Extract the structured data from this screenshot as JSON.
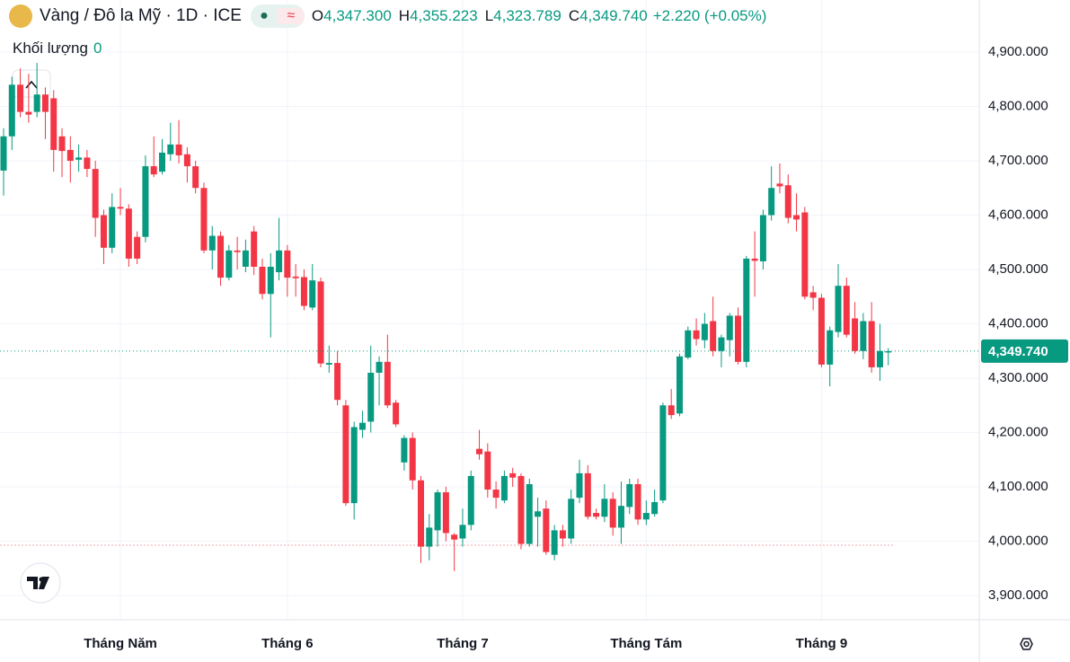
{
  "header": {
    "title": "Vàng / Đô la Mỹ · 1D · ICE",
    "ohlc": [
      {
        "key": "O",
        "value": "4,347.300"
      },
      {
        "key": "H",
        "value": "4,355.223"
      },
      {
        "key": "L",
        "value": "4,323.789"
      },
      {
        "key": "C",
        "value": "4,349.740"
      }
    ],
    "change": "+2.220 (+0.05%)",
    "volume_label": "Khối lượng",
    "volume_value": "0"
  },
  "chart_data": {
    "type": "candlestick",
    "open": [
      4682,
      4745,
      4840,
      4790,
      4790,
      4822,
      4815,
      4745,
      4720,
      4702,
      4706,
      4685,
      4600,
      4540,
      4615,
      4612,
      4560,
      4560,
      4690,
      4680,
      4712,
      4730,
      4712,
      4690,
      4650,
      4535,
      4562,
      4485,
      4535,
      4505,
      4570,
      4505,
      4455,
      4495,
      4535,
      4487,
      4486,
      4430,
      4478,
      4325,
      4328,
      4250,
      4070,
      4205,
      4220,
      4310,
      4330,
      4255,
      4145,
      4190,
      4112,
      3990,
      4020,
      4090,
      4012,
      4005,
      4030,
      4170,
      4165,
      4095,
      4075,
      4125,
      4120,
      3995,
      4045,
      4060,
      3975,
      4020,
      4005,
      4080,
      4125,
      4052,
      4045,
      4078,
      4025,
      4063,
      4105,
      4040,
      4050,
      4075,
      4250,
      4235,
      4338,
      4388,
      4370,
      4405,
      4350,
      4370,
      4415,
      4330,
      4520,
      4515,
      4600,
      4658,
      4655,
      4600,
      4605,
      4458,
      4448,
      4325,
      4385,
      4470,
      4410,
      4350,
      4405,
      4320,
      4347.3
    ],
    "high": [
      4760,
      4855,
      4870,
      4860,
      4880,
      4835,
      4830,
      4760,
      4745,
      4730,
      4720,
      4700,
      4610,
      4640,
      4650,
      4620,
      4570,
      4710,
      4745,
      4740,
      4770,
      4775,
      4725,
      4700,
      4660,
      4580,
      4570,
      4545,
      4560,
      4555,
      4580,
      4520,
      4530,
      4595,
      4545,
      4510,
      4500,
      4510,
      4485,
      4360,
      4350,
      4260,
      4220,
      4240,
      4360,
      4340,
      4380,
      4260,
      4195,
      4200,
      4120,
      4050,
      4095,
      4100,
      4015,
      4060,
      4130,
      4205,
      4180,
      4110,
      4130,
      4135,
      4125,
      4115,
      4080,
      4075,
      4030,
      4030,
      4095,
      4150,
      4140,
      4060,
      4105,
      4090,
      4110,
      4115,
      4115,
      4075,
      4095,
      4255,
      4280,
      4345,
      4395,
      4410,
      4420,
      4450,
      4380,
      4420,
      4430,
      4525,
      4570,
      4610,
      4690,
      4695,
      4675,
      4640,
      4615,
      4470,
      4455,
      4395,
      4510,
      4485,
      4440,
      4420,
      4440,
      4400,
      4355.223
    ],
    "low": [
      4636,
      4720,
      4780,
      4770,
      4780,
      4740,
      4680,
      4670,
      4660,
      4680,
      4670,
      4560,
      4510,
      4530,
      4600,
      4505,
      4510,
      4550,
      4670,
      4675,
      4700,
      4695,
      4660,
      4640,
      4530,
      4500,
      4470,
      4480,
      4500,
      4495,
      4490,
      4445,
      4375,
      4480,
      4450,
      4450,
      4425,
      4425,
      4320,
      4310,
      4250,
      4065,
      4040,
      4190,
      4200,
      4250,
      4245,
      4210,
      4130,
      4095,
      3960,
      3965,
      3990,
      4000,
      3945,
      3990,
      4020,
      4150,
      4080,
      4060,
      4070,
      4100,
      3985,
      3990,
      3990,
      3975,
      3965,
      3990,
      3995,
      4070,
      4040,
      4040,
      4035,
      4010,
      3995,
      4050,
      4030,
      4030,
      4045,
      4070,
      4225,
      4230,
      4335,
      4360,
      4355,
      4340,
      4320,
      4340,
      4325,
      4320,
      4450,
      4500,
      4590,
      4640,
      4585,
      4570,
      4445,
      4425,
      4320,
      4285,
      4375,
      4375,
      4345,
      4335,
      4310,
      4295,
      4323.789
    ],
    "close": [
      4745,
      4840,
      4790,
      4785,
      4822,
      4790,
      4720,
      4718,
      4700,
      4706,
      4685,
      4595,
      4540,
      4615,
      4612,
      4520,
      4520,
      4690,
      4675,
      4715,
      4730,
      4710,
      4690,
      4650,
      4535,
      4562,
      4485,
      4535,
      4532,
      4535,
      4505,
      4455,
      4505,
      4535,
      4485,
      4484,
      4433,
      4480,
      4327,
      4328,
      4260,
      4070,
      4210,
      4218,
      4310,
      4330,
      4250,
      4215,
      4190,
      4112,
      3990,
      4025,
      4090,
      4015,
      4003,
      4030,
      4120,
      4160,
      4095,
      4080,
      4120,
      4117,
      3995,
      4105,
      4055,
      3980,
      4020,
      4005,
      4078,
      4125,
      4045,
      4045,
      4078,
      4025,
      4065,
      4105,
      4040,
      4052,
      4072,
      4250,
      4232,
      4340,
      4388,
      4372,
      4400,
      4350,
      4375,
      4415,
      4330,
      4520,
      4516,
      4600,
      4650,
      4653,
      4595,
      4592,
      4450,
      4448,
      4325,
      4388,
      4470,
      4380,
      4350,
      4405,
      4320,
      4350,
      4349.74
    ],
    "up_color": "#089981",
    "down_color": "#f23645",
    "ylim": [
      3855.4,
      4995.9
    ],
    "yticks": [
      {
        "value": 3900,
        "label": "3,900.000"
      },
      {
        "value": 4000,
        "label": "4,000.000"
      },
      {
        "value": 4100,
        "label": "4,100.000"
      },
      {
        "value": 4200,
        "label": "4,200.000"
      },
      {
        "value": 4300,
        "label": "4,300.000"
      },
      {
        "value": 4400,
        "label": "4,400.000"
      },
      {
        "value": 4500,
        "label": "4,500.000"
      },
      {
        "value": 4600,
        "label": "4,600.000"
      },
      {
        "value": 4700,
        "label": "4,700.000"
      },
      {
        "value": 4800,
        "label": "4,800.000"
      },
      {
        "value": 4900,
        "label": "4,900.000"
      }
    ],
    "xlim": [
      -0.43,
      116.9
    ],
    "xticks": [
      {
        "value": 14,
        "label": "Tháng Năm"
      },
      {
        "value": 34,
        "label": "Tháng 6"
      },
      {
        "value": 55,
        "label": "Tháng 7"
      },
      {
        "value": 77,
        "label": "Tháng Tám"
      },
      {
        "value": 98,
        "label": "Tháng 9"
      }
    ],
    "last_price": {
      "value": 4349.74,
      "label": "4,349.740"
    },
    "grid": true
  }
}
